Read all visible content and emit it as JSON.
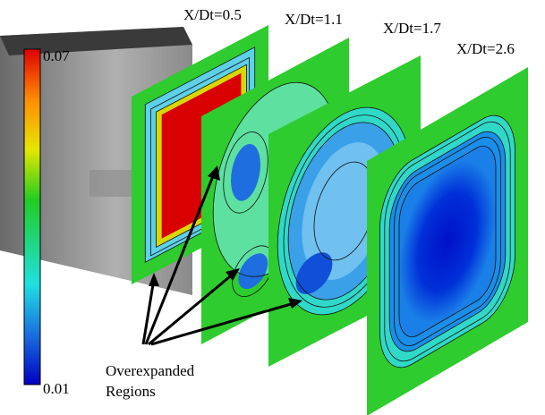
{
  "slice_labels": [
    "X/Dt=0.5",
    "X/Dt=1.1",
    "X/Dt=1.7",
    "X/Dt=2.6"
  ],
  "colorbar": {
    "max": 0.07,
    "min": 0.01
  },
  "annotation": {
    "line1": "Overexpanded",
    "line2": "Regions"
  }
}
